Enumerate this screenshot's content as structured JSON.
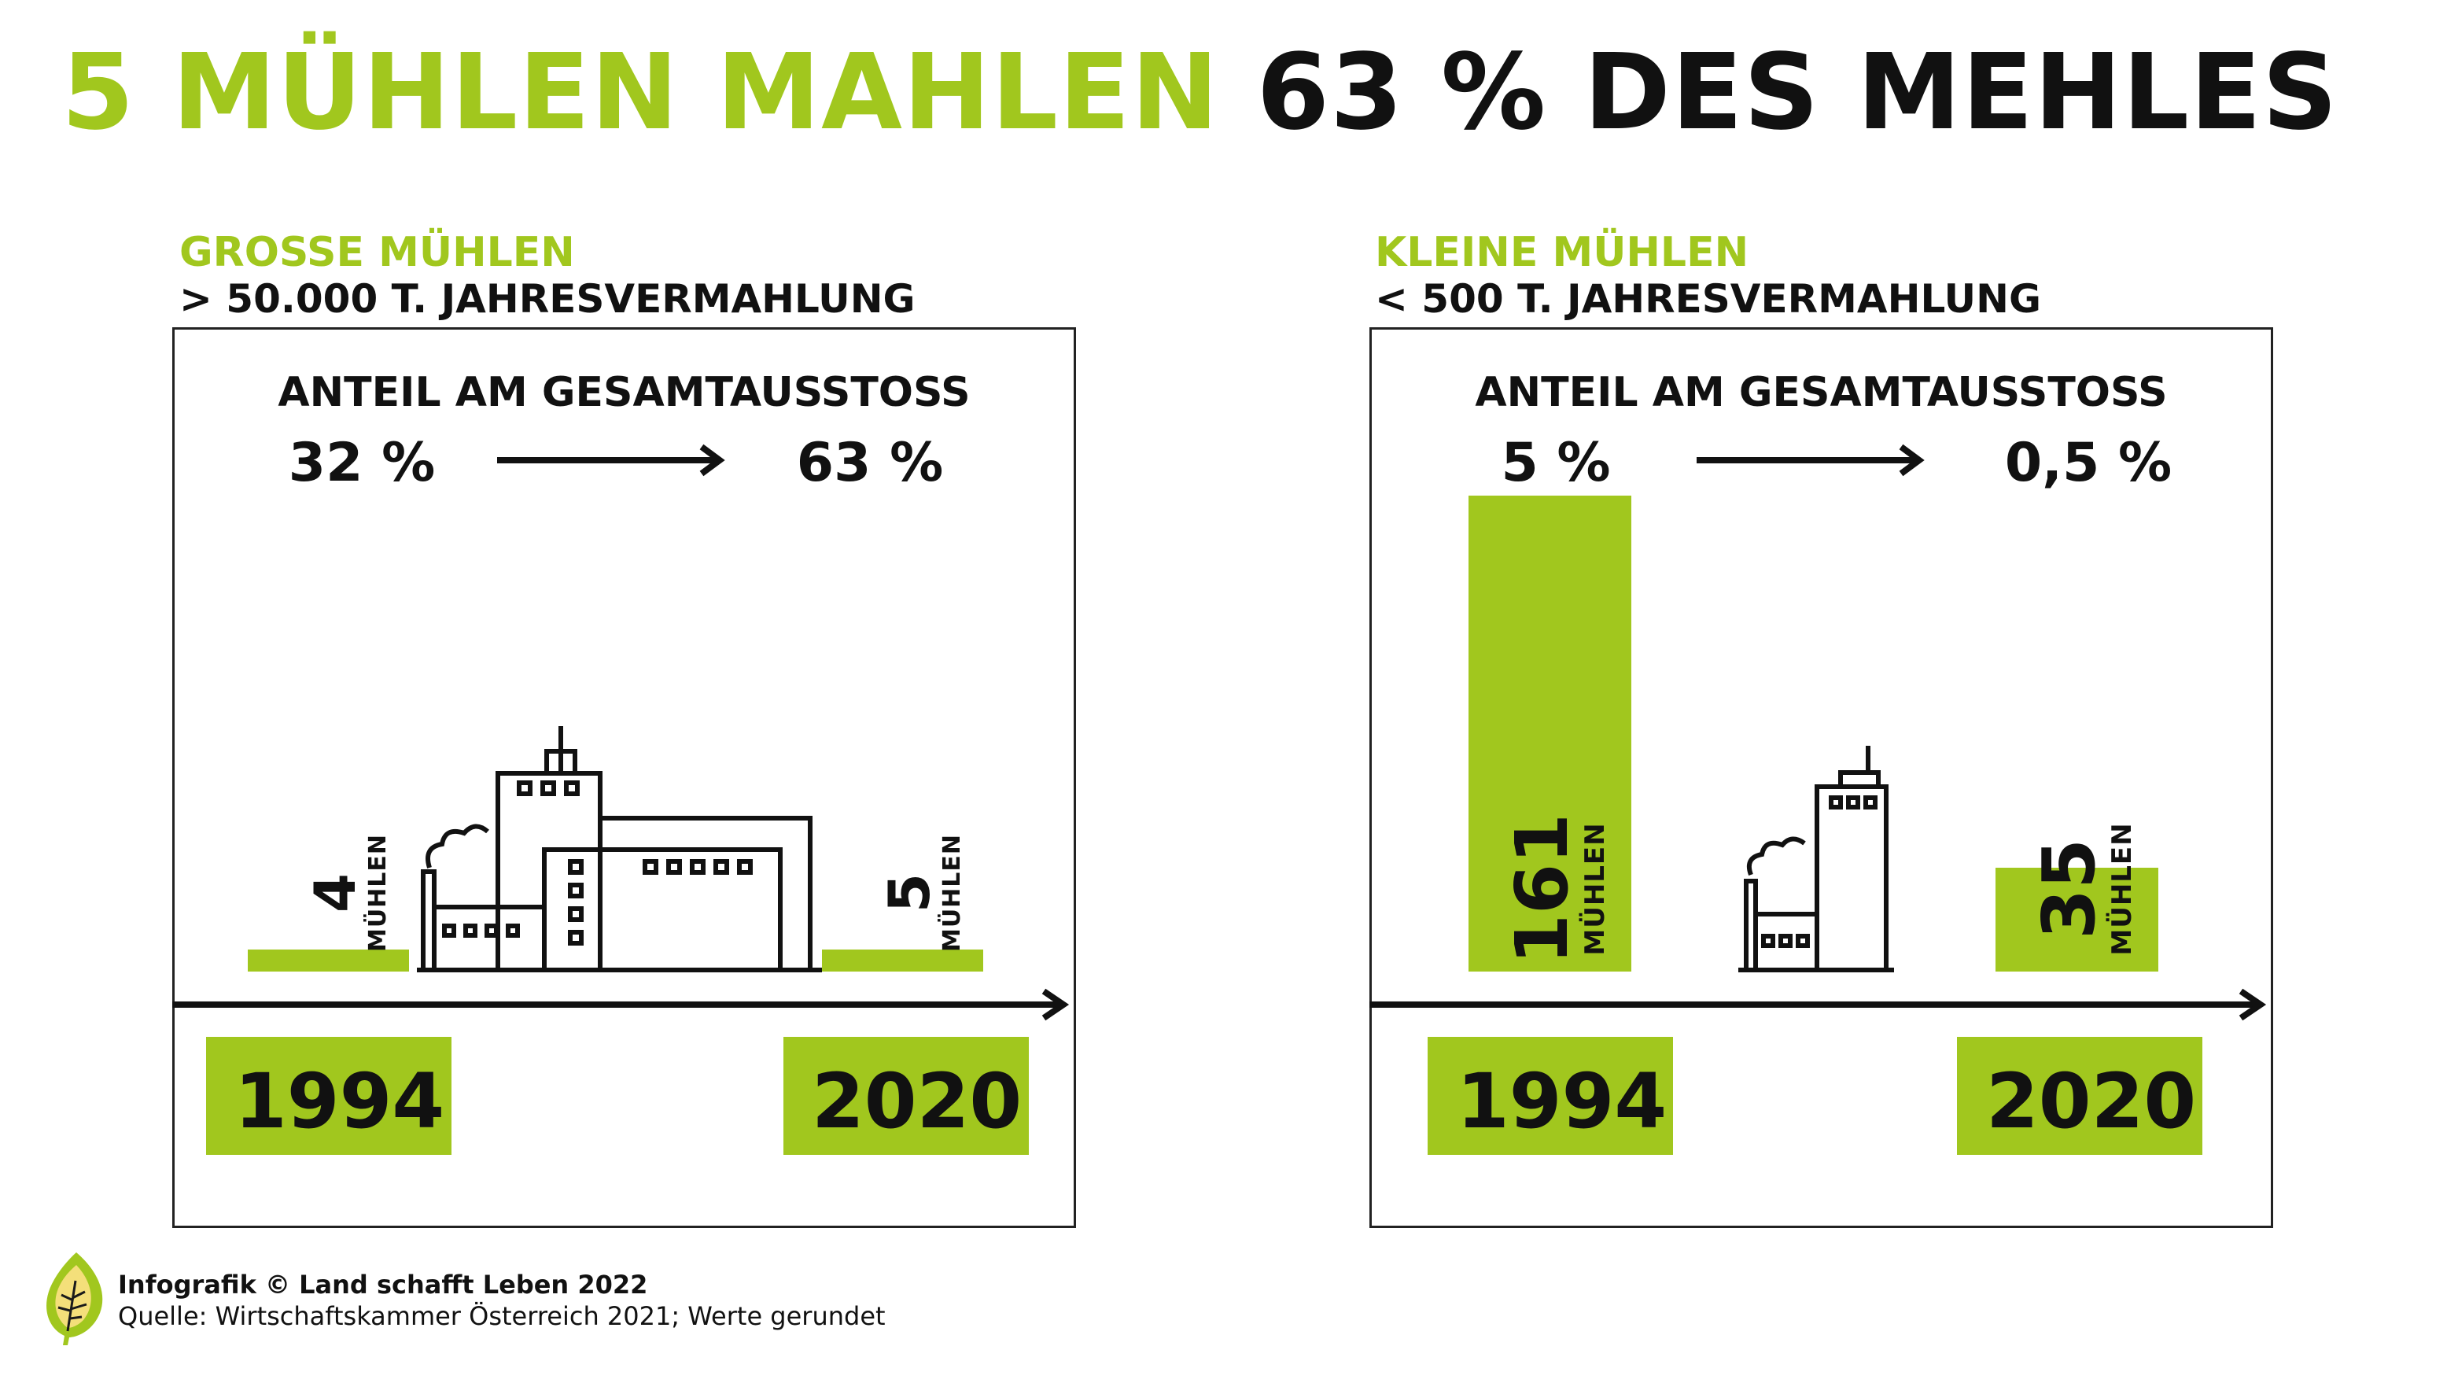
{
  "title": {
    "green": "5 MÜHLEN MAHLEN",
    "black": "63 % DES MEHLES"
  },
  "colors": {
    "accent": "#a1c71e",
    "text": "#111111",
    "frame": "#222222"
  },
  "chart_data": [
    {
      "type": "bar",
      "title": "GROSSE MÜHLEN",
      "subtitle": "> 50.000 T. JAHRESVERMAHLUNG",
      "share_label": "ANTEIL AM GESAMTAUSSTOSS",
      "share_from": "32 %",
      "share_to": "63 %",
      "categories": [
        "1994",
        "2020"
      ],
      "values": [
        4,
        5
      ],
      "value_labels": [
        "4",
        "5"
      ],
      "unit": "MÜHLEN",
      "icon": "large-mill-factory-icon"
    },
    {
      "type": "bar",
      "title": "KLEINE MÜHLEN",
      "subtitle": "< 500 T. JAHRESVERMAHLUNG",
      "share_label": "ANTEIL AM GESAMTAUSSTOSS",
      "share_from": "5 %",
      "share_to": "0,5 %",
      "categories": [
        "1994",
        "2020"
      ],
      "values": [
        161,
        35
      ],
      "value_labels": [
        "161",
        "35"
      ],
      "unit": "MÜHLEN",
      "icon": "small-mill-factory-icon"
    }
  ],
  "footer": {
    "credit": "Infografik © Land schafft Leben 2022",
    "source": "Quelle: Wirtschaftskammer Österreich 2021; Werte gerundet",
    "logo_icon": "leaf-logo-icon"
  }
}
